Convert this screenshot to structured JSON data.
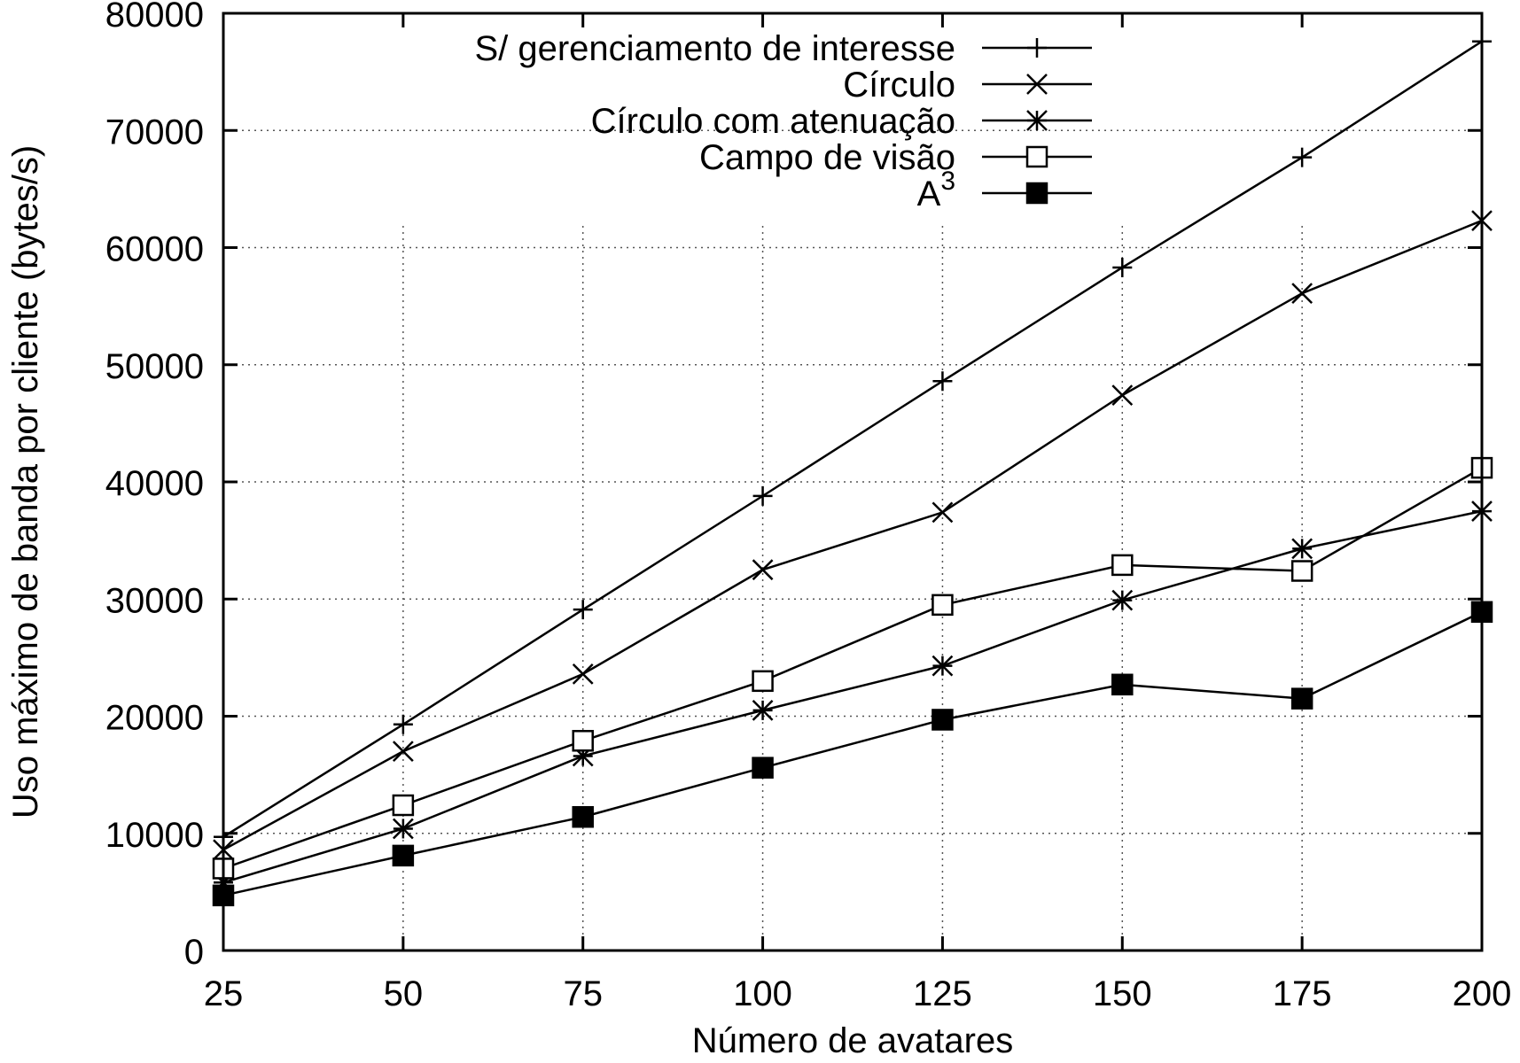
{
  "chart_data": {
    "type": "line",
    "xlabel": "Número de avatares",
    "ylabel": "Uso máximo de banda por cliente (bytes/s)",
    "x": [
      25,
      50,
      75,
      100,
      125,
      150,
      175,
      200
    ],
    "xlim": [
      25,
      200
    ],
    "ylim": [
      0,
      80000
    ],
    "x_ticks": [
      "25",
      "50",
      "75",
      "100",
      "125",
      "150",
      "175",
      "200"
    ],
    "y_ticks": [
      "0",
      "10000",
      "20000",
      "30000",
      "40000",
      "50000",
      "60000",
      "70000",
      "80000"
    ],
    "grid": true,
    "legend_position": "top-right",
    "series": [
      {
        "name": "S/ gerenciamento de interesse",
        "marker": "plus",
        "values": [
          9700,
          19300,
          29100,
          38800,
          48600,
          58300,
          67700,
          77600
        ]
      },
      {
        "name": "Círculo",
        "marker": "cross",
        "values": [
          8600,
          17000,
          23600,
          32500,
          37400,
          47400,
          56100,
          62300
        ]
      },
      {
        "name": "Círculo com atenuação",
        "marker": "star",
        "values": [
          5800,
          10400,
          16600,
          20500,
          24300,
          29900,
          34300,
          37500
        ]
      },
      {
        "name": "Campo de visão",
        "marker": "open-square",
        "values": [
          7000,
          12400,
          17900,
          23000,
          29500,
          32900,
          32400,
          41200
        ]
      },
      {
        "name": "A",
        "name_superscript": "3",
        "marker": "filled-square",
        "values": [
          4700,
          8100,
          11400,
          15600,
          19700,
          22700,
          21500,
          28900
        ]
      }
    ]
  }
}
